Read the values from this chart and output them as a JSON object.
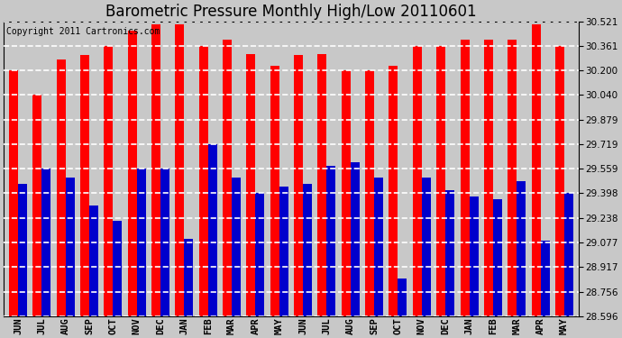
{
  "title": "Barometric Pressure Monthly High/Low 20110601",
  "copyright": "Copyright 2011 Cartronics.com",
  "categories": [
    "JUN",
    "JUL",
    "AUG",
    "SEP",
    "OCT",
    "NOV",
    "DEC",
    "JAN",
    "FEB",
    "MAR",
    "APR",
    "MAY",
    "JUN",
    "JUL",
    "AUG",
    "SEP",
    "OCT",
    "NOV",
    "DEC",
    "JAN",
    "FEB",
    "MAR",
    "APR",
    "MAY"
  ],
  "highs": [
    30.2,
    30.04,
    30.27,
    30.3,
    30.36,
    30.46,
    30.5,
    30.5,
    30.36,
    30.4,
    30.31,
    30.23,
    30.3,
    30.31,
    30.2,
    30.2,
    30.23,
    30.36,
    30.36,
    30.4,
    30.4,
    30.4,
    30.5,
    30.36
  ],
  "lows": [
    29.46,
    29.56,
    29.5,
    29.32,
    29.22,
    29.56,
    29.56,
    29.1,
    29.72,
    29.5,
    29.4,
    29.44,
    29.46,
    29.58,
    29.6,
    29.5,
    28.84,
    29.5,
    29.42,
    29.38,
    29.36,
    29.48,
    29.09,
    29.4
  ],
  "high_color": "#ff0000",
  "low_color": "#0000cc",
  "bg_color": "#c8c8c8",
  "plot_bg": "#c8c8c8",
  "ymin": 28.596,
  "ymax": 30.521,
  "yticks": [
    28.596,
    28.756,
    28.917,
    29.077,
    29.238,
    29.398,
    29.559,
    29.719,
    29.879,
    30.04,
    30.2,
    30.361,
    30.521
  ],
  "grid_color": "#ffffff",
  "title_fontsize": 12,
  "copyright_fontsize": 7
}
